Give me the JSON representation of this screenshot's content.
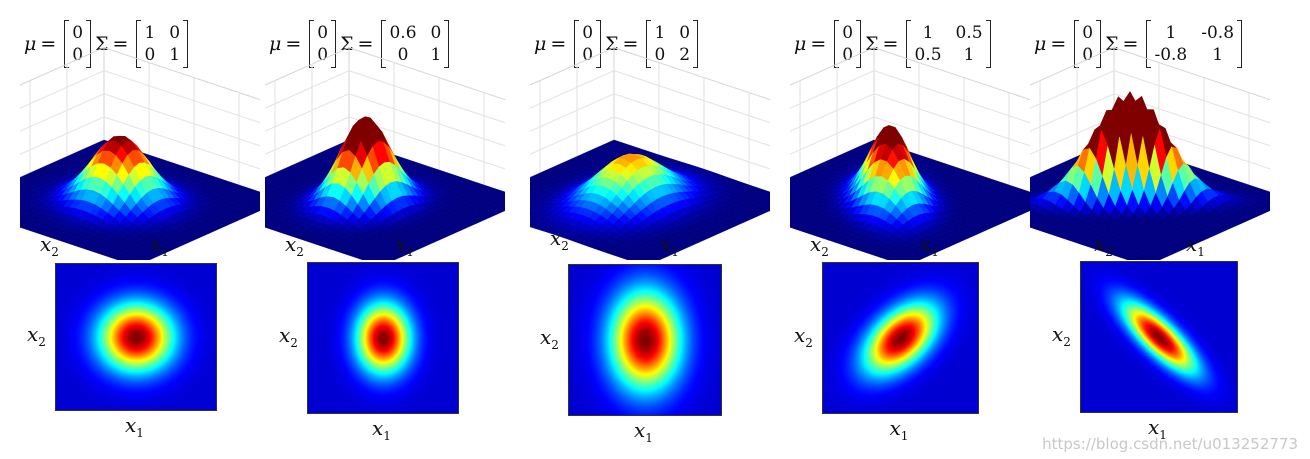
{
  "chart_data": [
    {
      "type": "heatmap",
      "mu": [
        "0",
        "0"
      ],
      "sigma": [
        [
          "1",
          "0"
        ],
        [
          "0",
          "1"
        ]
      ],
      "s11": 1,
      "s22": 1,
      "s12": 0,
      "xlabel": "x1",
      "ylabel": "x2",
      "surface_labels": [
        "x2",
        "x1"
      ]
    },
    {
      "type": "heatmap",
      "mu": [
        "0",
        "0"
      ],
      "sigma": [
        [
          "0.6",
          "0"
        ],
        [
          "0",
          "1"
        ]
      ],
      "s11": 0.6,
      "s22": 1,
      "s12": 0,
      "xlabel": "x1",
      "ylabel": "x2",
      "surface_labels": [
        "x2",
        "x1"
      ]
    },
    {
      "type": "heatmap",
      "mu": [
        "0",
        "0"
      ],
      "sigma": [
        [
          "1",
          "0"
        ],
        [
          "0",
          "2"
        ]
      ],
      "s11": 1,
      "s22": 2,
      "s12": 0,
      "xlabel": "x1",
      "ylabel": "x2",
      "surface_labels": [
        "x2",
        "x1"
      ]
    },
    {
      "type": "heatmap",
      "mu": [
        "0",
        "0"
      ],
      "sigma": [
        [
          "1",
          "0.5"
        ],
        [
          "0.5",
          "1"
        ]
      ],
      "s11": 1,
      "s22": 1,
      "s12": 0.5,
      "xlabel": "x1",
      "ylabel": "x2",
      "surface_labels": [
        "x2",
        "x1"
      ]
    },
    {
      "type": "heatmap",
      "mu": [
        "0",
        "0"
      ],
      "sigma": [
        [
          "1",
          "-0.8"
        ],
        [
          "-0.8",
          "1"
        ]
      ],
      "s11": 1,
      "s22": 1,
      "s12": -0.8,
      "xlabel": "x1",
      "ylabel": "x2",
      "surface_labels": [
        "x2",
        "x1"
      ]
    }
  ],
  "formula": {
    "mu_symbol": "μ",
    "sigma_symbol": "Σ",
    "equals": "="
  },
  "colors": {
    "low": "#0a1d8c",
    "mid": "#34c7c0",
    "high": "#b00000"
  },
  "watermark": "https://blog.csdn.net/u013252773"
}
